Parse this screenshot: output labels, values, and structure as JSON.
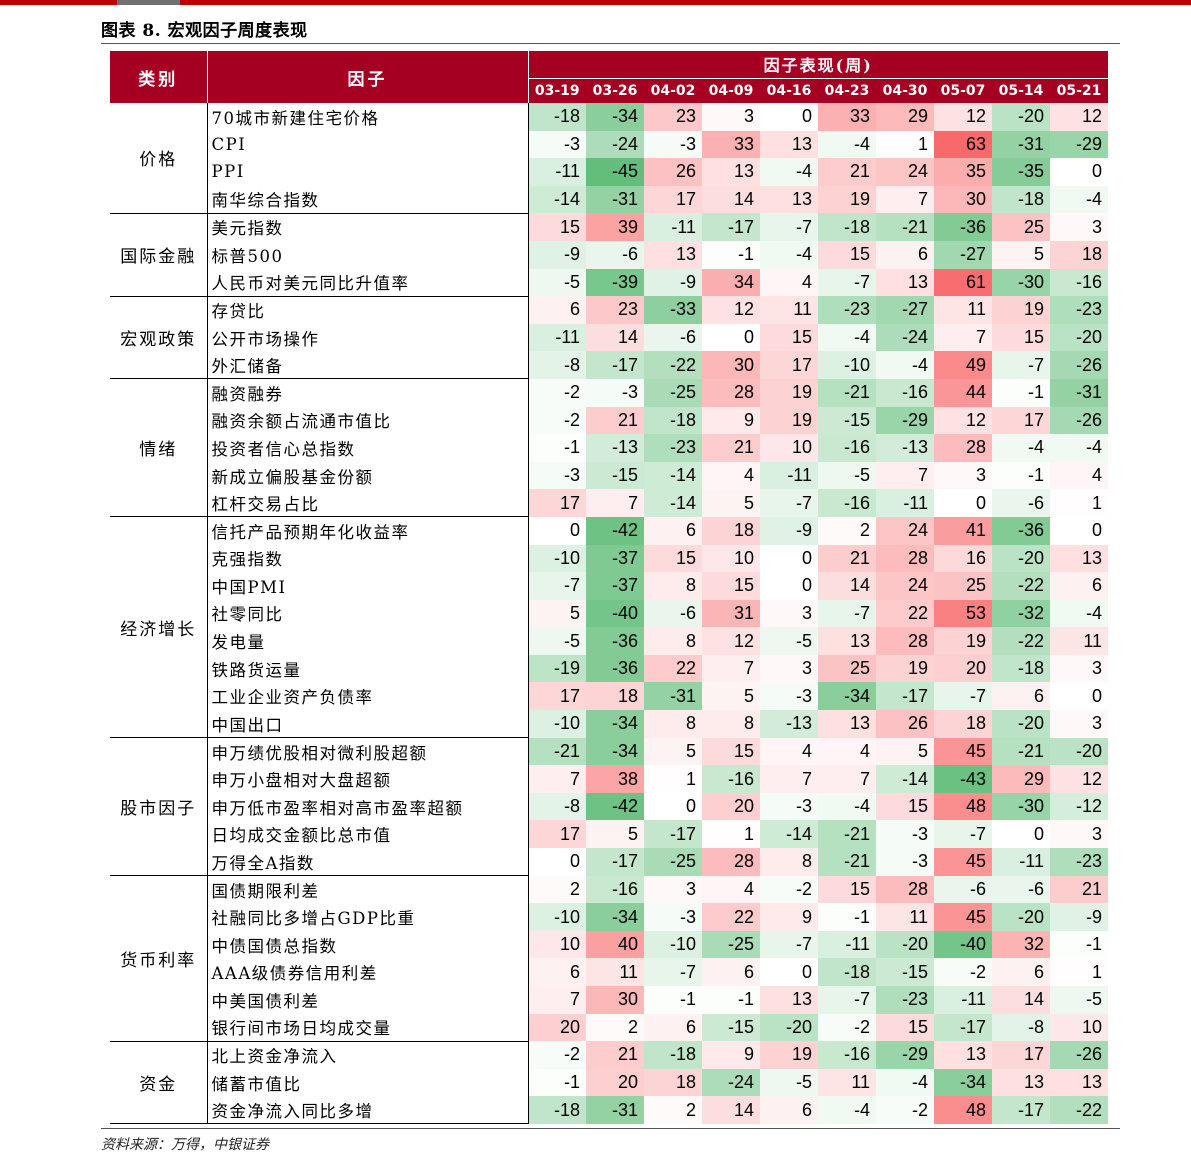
{
  "title": "图表 8. 宏观因子周度表现",
  "source": "资料来源：万得，中银证券",
  "header": {
    "category_label": "类别",
    "factor_label": "因子",
    "perf_label": "因子表现(周)",
    "weeks": [
      "03-19",
      "03-26",
      "04-02",
      "04-09",
      "04-16",
      "04-23",
      "04-30",
      "05-07",
      "05-14",
      "05-21"
    ]
  },
  "colors": {
    "header_bg": "#a50021",
    "positive": "#f8696b",
    "negative": "#63be7b",
    "accent_bar": "#c00000"
  },
  "groups": [
    {
      "category": "价格",
      "rows": [
        {
          "factor": "70城市新建住宅价格",
          "values": [
            -18,
            -34,
            23,
            3,
            0,
            33,
            29,
            12,
            -20,
            12
          ]
        },
        {
          "factor": "CPI",
          "values": [
            -3,
            -24,
            -3,
            33,
            13,
            -4,
            1,
            63,
            -31,
            -29
          ]
        },
        {
          "factor": "PPI",
          "values": [
            -11,
            -45,
            26,
            13,
            -4,
            21,
            24,
            35,
            -35,
            0
          ]
        },
        {
          "factor": "南华综合指数",
          "values": [
            -14,
            -31,
            17,
            14,
            13,
            19,
            7,
            30,
            -18,
            -4
          ]
        }
      ]
    },
    {
      "category": "国际金融",
      "rows": [
        {
          "factor": "美元指数",
          "values": [
            15,
            39,
            -11,
            -17,
            -7,
            -18,
            -21,
            -36,
            25,
            3
          ]
        },
        {
          "factor": "标普500",
          "values": [
            -9,
            -6,
            13,
            -1,
            -4,
            15,
            6,
            -27,
            5,
            18
          ]
        },
        {
          "factor": "人民币对美元同比升值率",
          "values": [
            -5,
            -39,
            -9,
            34,
            4,
            -7,
            13,
            61,
            -30,
            -16
          ]
        }
      ]
    },
    {
      "category": "宏观政策",
      "rows": [
        {
          "factor": "存贷比",
          "values": [
            6,
            23,
            -33,
            12,
            11,
            -23,
            -27,
            11,
            19,
            -23
          ]
        },
        {
          "factor": "公开市场操作",
          "values": [
            -11,
            14,
            -6,
            0,
            15,
            -4,
            -24,
            7,
            15,
            -20
          ]
        },
        {
          "factor": "外汇储备",
          "values": [
            -8,
            -17,
            -22,
            30,
            17,
            -10,
            -4,
            49,
            -7,
            -26
          ]
        }
      ]
    },
    {
      "category": "情绪",
      "rows": [
        {
          "factor": "融资融券",
          "values": [
            -2,
            -3,
            -25,
            28,
            19,
            -21,
            -16,
            44,
            -1,
            -31
          ]
        },
        {
          "factor": "融资余额占流通市值比",
          "values": [
            -2,
            21,
            -18,
            9,
            19,
            -15,
            -29,
            12,
            17,
            -26
          ]
        },
        {
          "factor": "投资者信心总指数",
          "values": [
            -1,
            -13,
            -23,
            21,
            10,
            -16,
            -13,
            28,
            -4,
            -4
          ]
        },
        {
          "factor": "新成立偏股基金份额",
          "values": [
            -3,
            -15,
            -14,
            4,
            -11,
            -5,
            7,
            3,
            -1,
            4
          ]
        },
        {
          "factor": "杠杆交易占比",
          "values": [
            17,
            7,
            -14,
            5,
            -7,
            -16,
            -11,
            0,
            -6,
            1
          ]
        }
      ]
    },
    {
      "category": "经济增长",
      "rows": [
        {
          "factor": "信托产品预期年化收益率",
          "values": [
            0,
            -42,
            6,
            18,
            -9,
            2,
            24,
            41,
            -36,
            0
          ]
        },
        {
          "factor": "克强指数",
          "values": [
            -10,
            -37,
            15,
            10,
            0,
            21,
            28,
            16,
            -20,
            13
          ]
        },
        {
          "factor": "中国PMI",
          "values": [
            -7,
            -37,
            8,
            15,
            0,
            14,
            24,
            25,
            -22,
            6
          ]
        },
        {
          "factor": "社零同比",
          "values": [
            5,
            -40,
            -6,
            31,
            3,
            -7,
            22,
            53,
            -32,
            -4
          ]
        },
        {
          "factor": "发电量",
          "values": [
            -5,
            -36,
            8,
            12,
            -5,
            13,
            28,
            19,
            -22,
            11
          ]
        },
        {
          "factor": "铁路货运量",
          "values": [
            -19,
            -36,
            22,
            7,
            3,
            25,
            19,
            20,
            -18,
            3
          ]
        },
        {
          "factor": "工业企业资产负债率",
          "values": [
            17,
            18,
            -31,
            5,
            -3,
            -34,
            -17,
            -7,
            6,
            0
          ]
        },
        {
          "factor": "中国出口",
          "values": [
            -10,
            -34,
            8,
            8,
            -13,
            13,
            26,
            18,
            -20,
            3
          ]
        }
      ]
    },
    {
      "category": "股市因子",
      "rows": [
        {
          "factor": "申万绩优股相对微利股超额",
          "values": [
            -21,
            -34,
            5,
            15,
            4,
            4,
            5,
            45,
            -21,
            -20
          ]
        },
        {
          "factor": "申万小盘相对大盘超额",
          "values": [
            7,
            38,
            1,
            -16,
            7,
            7,
            -14,
            -43,
            29,
            12
          ]
        },
        {
          "factor": "申万低市盈率相对高市盈率超额",
          "values": [
            -8,
            -42,
            0,
            20,
            -3,
            -4,
            15,
            48,
            -30,
            -12
          ]
        },
        {
          "factor": "日均成交金额比总市值",
          "values": [
            17,
            5,
            -17,
            1,
            -14,
            -21,
            -3,
            -7,
            0,
            3
          ]
        },
        {
          "factor": "万得全A指数",
          "values": [
            0,
            -17,
            -25,
            28,
            8,
            -21,
            -3,
            45,
            -11,
            -23
          ]
        }
      ]
    },
    {
      "category": "货币利率",
      "rows": [
        {
          "factor": "国债期限利差",
          "values": [
            2,
            -16,
            3,
            4,
            -2,
            15,
            28,
            -6,
            -6,
            21
          ]
        },
        {
          "factor": "社融同比多增占GDP比重",
          "values": [
            -10,
            -34,
            -3,
            22,
            9,
            -1,
            11,
            45,
            -20,
            -9
          ]
        },
        {
          "factor": "中债国债总指数",
          "values": [
            10,
            40,
            -10,
            -25,
            -7,
            -11,
            -20,
            -40,
            32,
            -1
          ]
        },
        {
          "factor": "AAA级债券信用利差",
          "values": [
            6,
            11,
            -7,
            6,
            0,
            -18,
            -15,
            -2,
            6,
            1
          ]
        },
        {
          "factor": "中美国债利差",
          "values": [
            7,
            30,
            -1,
            -1,
            13,
            -7,
            -23,
            -11,
            14,
            -5
          ]
        },
        {
          "factor": "银行间市场日均成交量",
          "values": [
            20,
            2,
            6,
            -15,
            -20,
            -2,
            15,
            -17,
            -8,
            10
          ]
        }
      ]
    },
    {
      "category": "资金",
      "rows": [
        {
          "factor": "北上资金净流入",
          "values": [
            -2,
            21,
            -18,
            9,
            19,
            -16,
            -29,
            13,
            17,
            -26
          ]
        },
        {
          "factor": "储蓄市值比",
          "values": [
            -1,
            20,
            18,
            -24,
            -5,
            11,
            -4,
            -34,
            13,
            13
          ]
        },
        {
          "factor": "资金净流入同比多增",
          "values": [
            -18,
            -31,
            2,
            14,
            6,
            -4,
            -2,
            48,
            -17,
            -22
          ]
        }
      ]
    }
  ]
}
